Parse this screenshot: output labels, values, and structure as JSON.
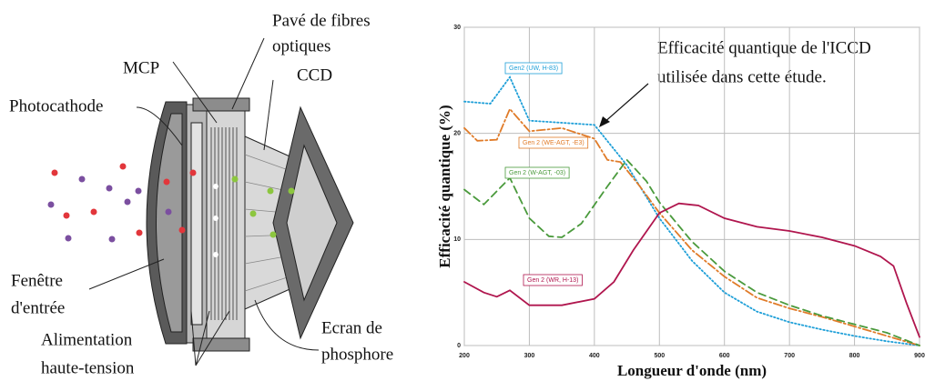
{
  "diagram": {
    "labels": {
      "fibres": [
        "Pavé de fibres",
        "optiques"
      ],
      "mcp": [
        "MCP"
      ],
      "ccd": [
        "CCD"
      ],
      "photocathode": [
        "Photocathode"
      ],
      "fenetre": [
        "Fenêtre",
        "d'entrée"
      ],
      "alimentation": [
        "Alimentation",
        "haute-tension"
      ],
      "ecran": [
        "Ecran de",
        "phosphore"
      ]
    }
  },
  "chart_data": {
    "type": "line",
    "annotation": [
      "Efficacité quantique de l'ICCD",
      "utilisée dans cette étude."
    ],
    "x_label": "Longueur d'onde (nm)",
    "y_label": "Efficacité quantique (%)",
    "xlim": [
      200,
      900
    ],
    "ylim": [
      0,
      30
    ],
    "xticks": [
      200,
      300,
      400,
      500,
      600,
      700,
      800,
      900
    ],
    "yticks": [
      0,
      10,
      20,
      30
    ],
    "grid": true,
    "series": [
      {
        "name": "Gen2 (UW, H-83)",
        "color": "#1e9fd8",
        "style": "dotted",
        "x": [
          200,
          240,
          270,
          300,
          350,
          400,
          450,
          500,
          550,
          600,
          650,
          700,
          750,
          800,
          850,
          900
        ],
        "values": [
          23,
          22.8,
          25.3,
          21.2,
          21,
          20.8,
          17,
          12,
          8,
          5,
          3.2,
          2.2,
          1.5,
          0.9,
          0.4,
          0
        ]
      },
      {
        "name": "Gen 2 (WE-AGT, -E3)",
        "color": "#e07b28",
        "style": "dashdot",
        "x": [
          200,
          220,
          250,
          270,
          300,
          350,
          400,
          420,
          440,
          470,
          500,
          550,
          600,
          650,
          700,
          750,
          800,
          850,
          900
        ],
        "values": [
          20.5,
          19.3,
          19.4,
          22.3,
          20.2,
          20.5,
          19.5,
          17.5,
          17.3,
          15,
          12.5,
          9,
          6.5,
          4.5,
          3.5,
          2.7,
          1.8,
          0.9,
          0
        ]
      },
      {
        "name": "Gen 2 (W-AGT, -03)",
        "color": "#4a9a3c",
        "style": "dashed",
        "x": [
          200,
          230,
          270,
          300,
          330,
          350,
          380,
          420,
          450,
          480,
          500,
          550,
          600,
          650,
          700,
          750,
          800,
          850,
          900
        ],
        "values": [
          14.7,
          13.3,
          15.8,
          12,
          10.3,
          10.2,
          11.5,
          15,
          17.5,
          15.5,
          13.5,
          9.8,
          7,
          5,
          3.8,
          2.8,
          2,
          1.2,
          0
        ]
      },
      {
        "name": "Gen 2 (WR, H-13)",
        "color": "#b0164e",
        "style": "solid",
        "x": [
          200,
          230,
          250,
          270,
          300,
          350,
          400,
          430,
          460,
          500,
          530,
          560,
          600,
          650,
          700,
          750,
          800,
          840,
          860,
          880,
          900
        ],
        "values": [
          6,
          5,
          4.6,
          5.2,
          3.8,
          3.8,
          4.4,
          6,
          9,
          12.5,
          13.4,
          13.2,
          12,
          11.2,
          10.8,
          10.2,
          9.4,
          8.4,
          7.5,
          4,
          0.8
        ]
      }
    ]
  }
}
